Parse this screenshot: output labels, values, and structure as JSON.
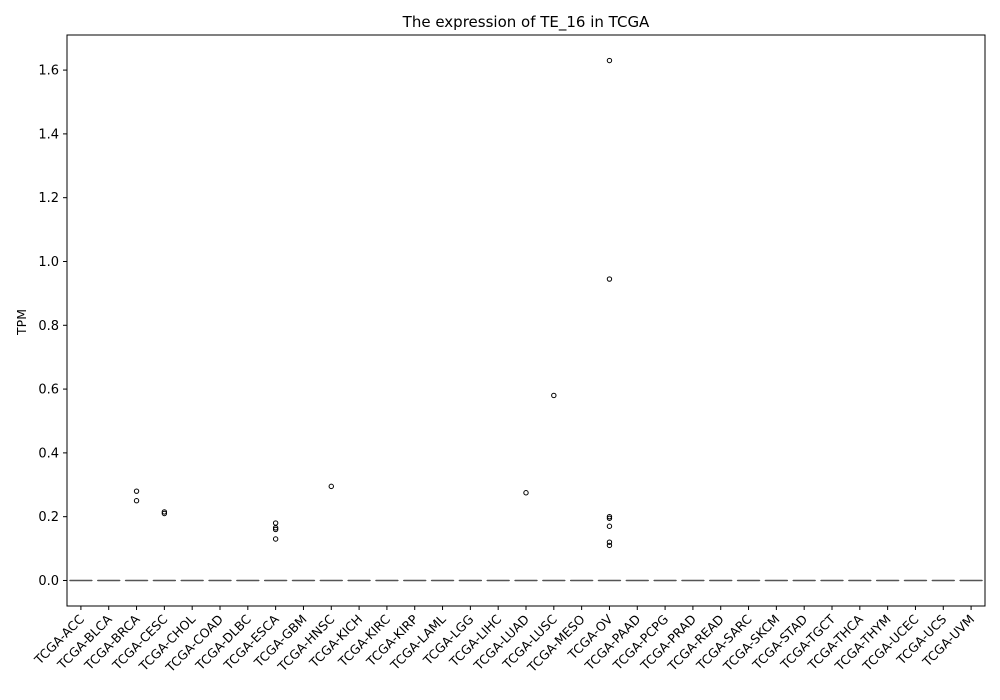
{
  "chart_data": {
    "type": "boxplot",
    "title": "The expression of TE_16 in TCGA",
    "xlabel": "",
    "ylabel": "TPM",
    "ylim": [
      -0.08,
      1.71
    ],
    "yticks": [
      0.0,
      0.2,
      0.4,
      0.6,
      0.8,
      1.0,
      1.2,
      1.4,
      1.6
    ],
    "ytick_labels": [
      "0.0",
      "0.2",
      "0.4",
      "0.6",
      "0.8",
      "1.0",
      "1.2",
      "1.4",
      "1.6"
    ],
    "grid": false,
    "legend": "none",
    "categories": [
      "TCGA-ACC",
      "TCGA-BLCA",
      "TCGA-BRCA",
      "TCGA-CESC",
      "TCGA-CHOL",
      "TCGA-COAD",
      "TCGA-DLBC",
      "TCGA-ESCA",
      "TCGA-GBM",
      "TCGA-HNSC",
      "TCGA-KICH",
      "TCGA-KIRC",
      "TCGA-KIRP",
      "TCGA-LAML",
      "TCGA-LGG",
      "TCGA-LIHC",
      "TCGA-LUAD",
      "TCGA-LUSC",
      "TCGA-MESO",
      "TCGA-OV",
      "TCGA-PAAD",
      "TCGA-PCPG",
      "TCGA-PRAD",
      "TCGA-READ",
      "TCGA-SARC",
      "TCGA-SKCM",
      "TCGA-STAD",
      "TCGA-TGCT",
      "TCGA-THCA",
      "TCGA-THYM",
      "TCGA-UCEC",
      "TCGA-UCS",
      "TCGA-UVM"
    ],
    "boxes": {
      "median": 0.0,
      "q1": 0.0,
      "q3": 0.0,
      "whisker_low": 0.0,
      "whisker_high": 0.0
    },
    "outliers": [
      {
        "category": "TCGA-BRCA",
        "values": [
          0.28,
          0.25
        ]
      },
      {
        "category": "TCGA-CESC",
        "values": [
          0.215,
          0.21
        ]
      },
      {
        "category": "TCGA-ESCA",
        "values": [
          0.18,
          0.165,
          0.16,
          0.13
        ]
      },
      {
        "category": "TCGA-HNSC",
        "values": [
          0.295
        ]
      },
      {
        "category": "TCGA-LUAD",
        "values": [
          0.275
        ]
      },
      {
        "category": "TCGA-LUSC",
        "values": [
          0.58
        ]
      },
      {
        "category": "TCGA-OV",
        "values": [
          1.63,
          0.945,
          0.2,
          0.195,
          0.17,
          0.12,
          0.11
        ]
      }
    ],
    "colors": {
      "box": "#555555",
      "outlier": "#000000"
    }
  }
}
